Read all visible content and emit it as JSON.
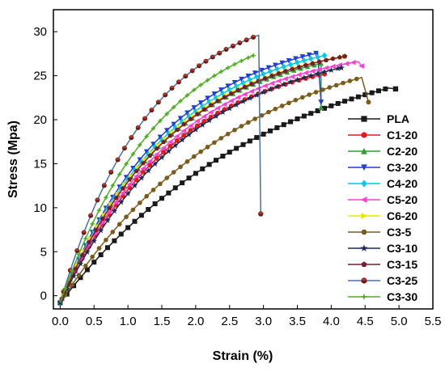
{
  "chart_data": {
    "type": "line",
    "title": "",
    "xlabel": "Strain (%)",
    "ylabel": "Stress (Mpa)",
    "xlim": [
      -0.1,
      5.5
    ],
    "ylim": [
      -1.5,
      32.5
    ],
    "x_ticks": [
      "0.0",
      "0.5",
      "1.0",
      "1.5",
      "2.0",
      "2.5",
      "3.0",
      "3.5",
      "4.0",
      "4.5",
      "5.0",
      "5.5"
    ],
    "y_ticks": [
      "0",
      "5",
      "10",
      "15",
      "20",
      "25",
      "30"
    ],
    "grid": false,
    "legend_position": "bottom-right",
    "series": [
      {
        "name": "PLA",
        "color": "#1a1a1a",
        "marker": "square",
        "peak_x": 4.85,
        "peak_y": 23.6,
        "init_slope": 10.0,
        "end_x": 4.95,
        "end_y": 23.5
      },
      {
        "name": "C1-20",
        "color": "#e31a1c",
        "marker": "circle",
        "peak_x": 3.9,
        "peak_y": 25.2,
        "init_slope": 17.0,
        "end_x": 3.9,
        "end_y": 25.2
      },
      {
        "name": "C2-20",
        "color": "#2ca02c",
        "marker": "triangle-up",
        "peak_x": 3.85,
        "peak_y": 26.4,
        "init_slope": 18.5,
        "end_x": 3.85,
        "end_y": 21.4
      },
      {
        "name": "C3-20",
        "color": "#1f3fd6",
        "marker": "triangle-down",
        "peak_x": 3.8,
        "peak_y": 27.6,
        "init_slope": 19.5,
        "end_x": 3.85,
        "end_y": 22.0
      },
      {
        "name": "C4-20",
        "color": "#00c8e8",
        "marker": "diamond",
        "peak_x": 3.9,
        "peak_y": 27.3,
        "init_slope": 18.8,
        "end_x": 3.9,
        "end_y": 27.3
      },
      {
        "name": "C5-20",
        "color": "#ff3fd0",
        "marker": "triangle-left",
        "peak_x": 4.4,
        "peak_y": 26.6,
        "init_slope": 17.5,
        "end_x": 4.45,
        "end_y": 26.1
      },
      {
        "name": "C6-20",
        "color": "#e8e800",
        "marker": "triangle-right",
        "peak_x": 4.2,
        "peak_y": 27.2,
        "init_slope": 18.6,
        "end_x": 4.2,
        "end_y": 27.2
      },
      {
        "name": "C3-5",
        "color": "#7b5b1a",
        "marker": "hexagon",
        "peak_x": 4.45,
        "peak_y": 24.8,
        "init_slope": 12.0,
        "end_x": 4.55,
        "end_y": 22.0
      },
      {
        "name": "C3-10",
        "color": "#1b2a52",
        "marker": "star",
        "peak_x": 4.15,
        "peak_y": 25.9,
        "init_slope": 16.0,
        "end_x": 4.15,
        "end_y": 25.9
      },
      {
        "name": "C3-15",
        "color": "#7a1a2e",
        "marker": "pentagon",
        "peak_x": 4.2,
        "peak_y": 27.2,
        "init_slope": 18.3,
        "end_x": 4.2,
        "end_y": 27.2
      },
      {
        "name": "C3-25",
        "color": "#4a6fb5",
        "marker": "half-circle",
        "peak_x": 2.93,
        "peak_y": 29.6,
        "init_slope": 26.0,
        "end_x": 2.96,
        "end_y": 9.3
      },
      {
        "name": "C3-30",
        "color": "#4caf1f",
        "marker": "plus",
        "peak_x": 2.85,
        "peak_y": 27.3,
        "init_slope": 22.0,
        "end_x": 2.85,
        "end_y": 27.3
      }
    ],
    "start_y": -0.8
  }
}
